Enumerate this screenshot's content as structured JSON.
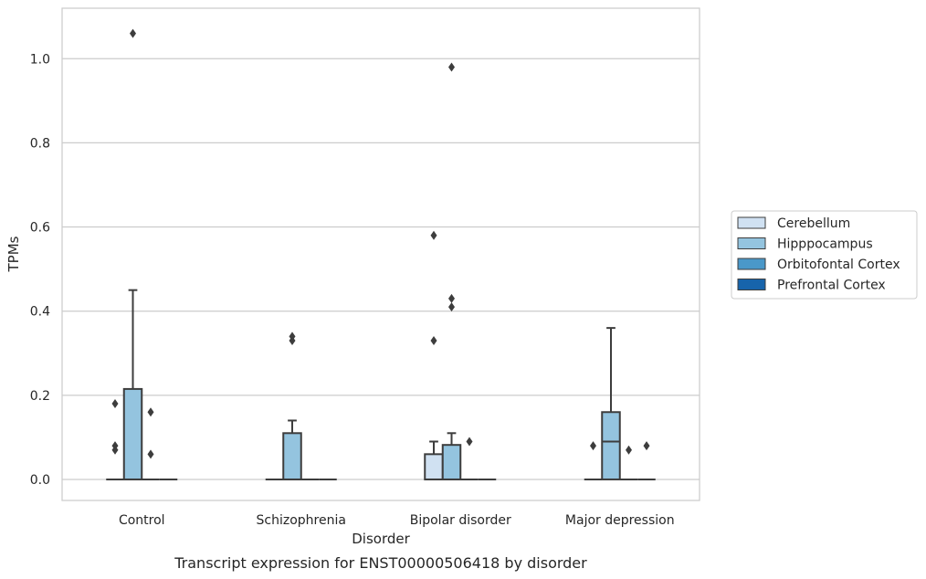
{
  "chart_data": {
    "type": "box",
    "title": "",
    "caption": "Transcript expression for ENST00000506418 by disorder",
    "xlabel": "Disorder",
    "ylabel": "TPMs",
    "ylim": [
      -0.05,
      1.12
    ],
    "yticks": [
      0.0,
      0.2,
      0.4,
      0.6,
      0.8,
      1.0
    ],
    "ytick_labels": [
      "0.0",
      "0.2",
      "0.4",
      "0.6",
      "0.8",
      "1.0"
    ],
    "grid": "horizontal",
    "legend_position": "right",
    "categories": [
      "Control",
      "Schizophrenia",
      "Bipolar disorder",
      "Major depression"
    ],
    "series": [
      {
        "name": "Cerebellum",
        "color": "#d0e1f2",
        "boxes": [
          {
            "q1": 0,
            "median": 0,
            "q3": 0,
            "whisker_low": 0,
            "whisker_high": 0,
            "outliers": [
              0.07,
              0.08,
              0.18
            ]
          },
          {
            "q1": 0,
            "median": 0,
            "q3": 0,
            "whisker_low": 0,
            "whisker_high": 0,
            "outliers": []
          },
          {
            "q1": 0,
            "median": 0,
            "q3": 0.06,
            "whisker_low": 0,
            "whisker_high": 0.09,
            "outliers": [
              0.33,
              0.58
            ]
          },
          {
            "q1": 0,
            "median": 0,
            "q3": 0,
            "whisker_low": 0,
            "whisker_high": 0,
            "outliers": [
              0.08
            ]
          }
        ]
      },
      {
        "name": "Hipppocampus",
        "color": "#94c4df",
        "boxes": [
          {
            "q1": 0,
            "median": 0,
            "q3": 0.215,
            "whisker_low": 0,
            "whisker_high": 0.45,
            "outliers": [
              1.06
            ]
          },
          {
            "q1": 0,
            "median": 0,
            "q3": 0.11,
            "whisker_low": 0,
            "whisker_high": 0.14,
            "outliers": [
              0.33,
              0.34
            ]
          },
          {
            "q1": 0,
            "median": 0,
            "q3": 0.082,
            "whisker_low": 0,
            "whisker_high": 0.11,
            "outliers": [
              0.41,
              0.43,
              0.98
            ]
          },
          {
            "q1": 0,
            "median": 0.09,
            "q3": 0.16,
            "whisker_low": 0,
            "whisker_high": 0.36,
            "outliers": []
          }
        ]
      },
      {
        "name": "Orbitofontal Cortex",
        "color": "#4a98c9",
        "boxes": [
          {
            "q1": 0,
            "median": 0,
            "q3": 0,
            "whisker_low": 0,
            "whisker_high": 0,
            "outliers": [
              0.06,
              0.16
            ]
          },
          {
            "q1": 0,
            "median": 0,
            "q3": 0,
            "whisker_low": 0,
            "whisker_high": 0,
            "outliers": []
          },
          {
            "q1": 0,
            "median": 0,
            "q3": 0,
            "whisker_low": 0,
            "whisker_high": 0,
            "outliers": [
              0.09
            ]
          },
          {
            "q1": 0,
            "median": 0,
            "q3": 0,
            "whisker_low": 0,
            "whisker_high": 0,
            "outliers": [
              0.07
            ]
          }
        ]
      },
      {
        "name": "Prefrontal Cortex",
        "color": "#1764ab",
        "boxes": [
          {
            "q1": 0,
            "median": 0,
            "q3": 0,
            "whisker_low": 0,
            "whisker_high": 0,
            "outliers": []
          },
          {
            "q1": 0,
            "median": 0,
            "q3": 0,
            "whisker_low": 0,
            "whisker_high": 0,
            "outliers": []
          },
          {
            "q1": 0,
            "median": 0,
            "q3": 0,
            "whisker_low": 0,
            "whisker_high": 0,
            "outliers": []
          },
          {
            "q1": 0,
            "median": 0,
            "q3": 0,
            "whisker_low": 0,
            "whisker_high": 0,
            "outliers": [
              0.08
            ]
          }
        ]
      }
    ]
  }
}
